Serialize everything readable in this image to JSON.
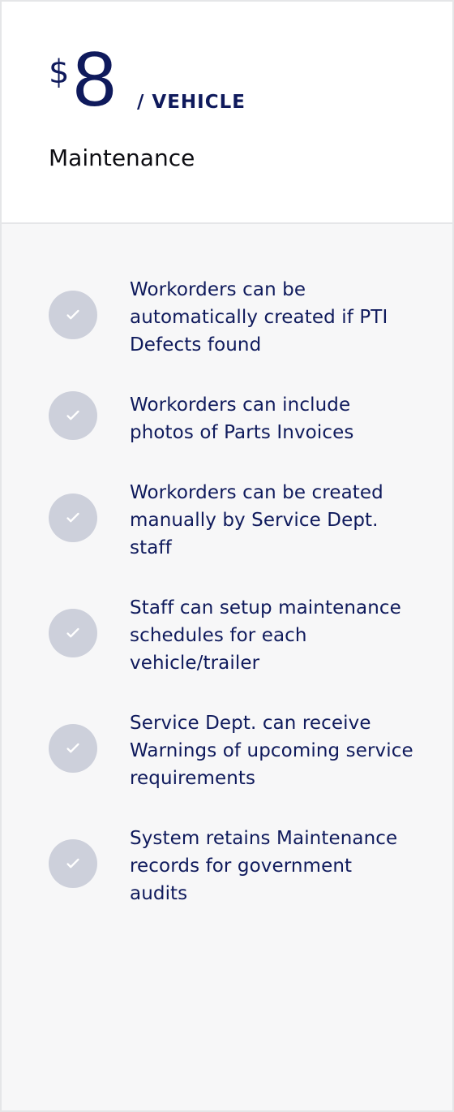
{
  "pricing": {
    "currency": "$",
    "amount": "8",
    "unit": "/ VEHICLE",
    "plan": "Maintenance"
  },
  "features": [
    "Workorders can be automatically created if PTI Defects found",
    "Workorders can include photos of Parts Invoices",
    "Workorders can be created manually by Service Dept. staff",
    "Staff can setup maintenance schedules for each vehicle/trailer",
    "Service Dept. can receive Warnings of upcoming service requirements",
    "System retains Maintenance records for government audits"
  ],
  "icons": {
    "feature": "check-icon"
  },
  "colors": {
    "primary": "#0f1a5c",
    "check_bg": "#cdd0db",
    "panel_bg": "#f7f7f8",
    "border": "#e5e6e8"
  }
}
